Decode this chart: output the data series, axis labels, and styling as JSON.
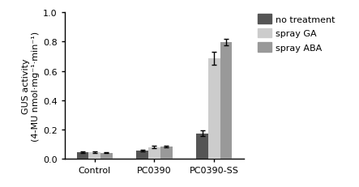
{
  "categories": [
    "Control",
    "PC0390",
    "PC0390-SS"
  ],
  "series": [
    {
      "label": "no treatment",
      "values": [
        0.047,
        0.058,
        0.175
      ],
      "errors": [
        0.005,
        0.006,
        0.018
      ],
      "color": "#555555"
    },
    {
      "label": "spray GA",
      "values": [
        0.045,
        0.08,
        0.685
      ],
      "errors": [
        0.004,
        0.008,
        0.045
      ],
      "color": "#cccccc"
    },
    {
      "label": "spray ABA",
      "values": [
        0.042,
        0.083,
        0.795
      ],
      "errors": [
        0.003,
        0.006,
        0.022
      ],
      "color": "#999999"
    }
  ],
  "ylabel_line1": "GUS activity",
  "ylabel_line2": "(4-MU nmol·mg⁻¹·min⁻¹)",
  "ylim": [
    0,
    1.0
  ],
  "yticks": [
    0.0,
    0.2,
    0.4,
    0.6,
    0.8,
    1.0
  ],
  "bar_width": 0.2,
  "background_color": "#ffffff",
  "legend_fontsize": 8,
  "tick_fontsize": 8,
  "ylabel_fontsize": 8
}
